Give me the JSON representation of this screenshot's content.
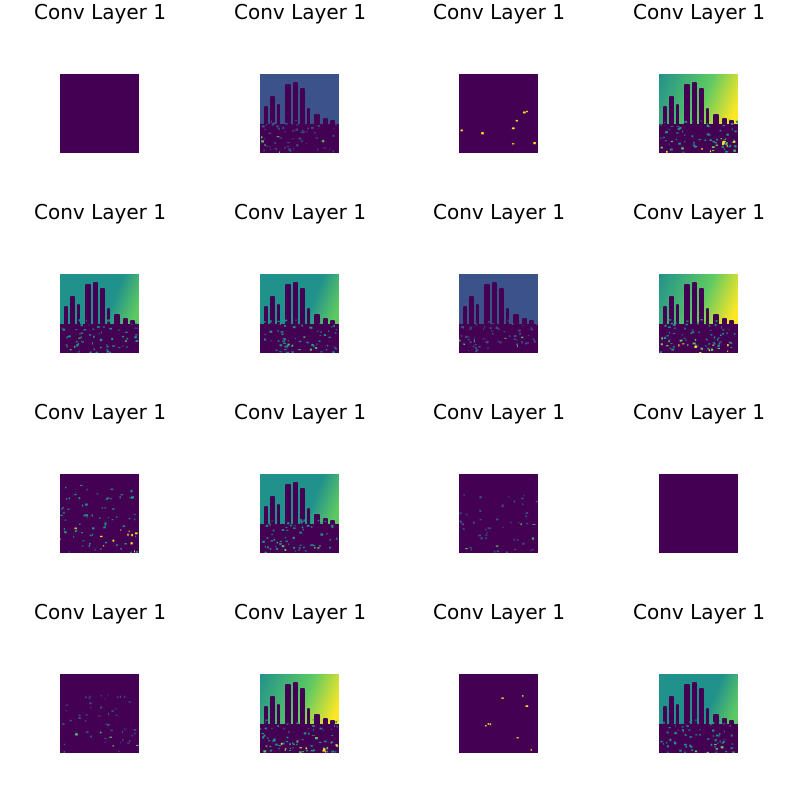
{
  "colors": {
    "background": "#ffffff",
    "viridis_dark": "#440154",
    "viridis_blue": "#3b528b",
    "viridis_teal": "#21918c",
    "viridis_green": "#5ec962",
    "viridis_yellow": "#fde725"
  },
  "tiles": [
    {
      "title": "Conv Layer 1",
      "style": "blank"
    },
    {
      "title": "Conv Layer 1",
      "style": "blue-dense"
    },
    {
      "title": "Conv Layer 1",
      "style": "sparse"
    },
    {
      "title": "Conv Layer 1",
      "style": "bright"
    },
    {
      "title": "Conv Layer 1",
      "style": "teal"
    },
    {
      "title": "Conv Layer 1",
      "style": "teal"
    },
    {
      "title": "Conv Layer 1",
      "style": "blue-dense"
    },
    {
      "title": "Conv Layer 1",
      "style": "bright"
    },
    {
      "title": "Conv Layer 1",
      "style": "edges"
    },
    {
      "title": "Conv Layer 1",
      "style": "teal"
    },
    {
      "title": "Conv Layer 1",
      "style": "edges-faint"
    },
    {
      "title": "Conv Layer 1",
      "style": "blank"
    },
    {
      "title": "Conv Layer 1",
      "style": "edges-faint"
    },
    {
      "title": "Conv Layer 1",
      "style": "bright"
    },
    {
      "title": "Conv Layer 1",
      "style": "sparse"
    },
    {
      "title": "Conv Layer 1",
      "style": "teal"
    }
  ]
}
